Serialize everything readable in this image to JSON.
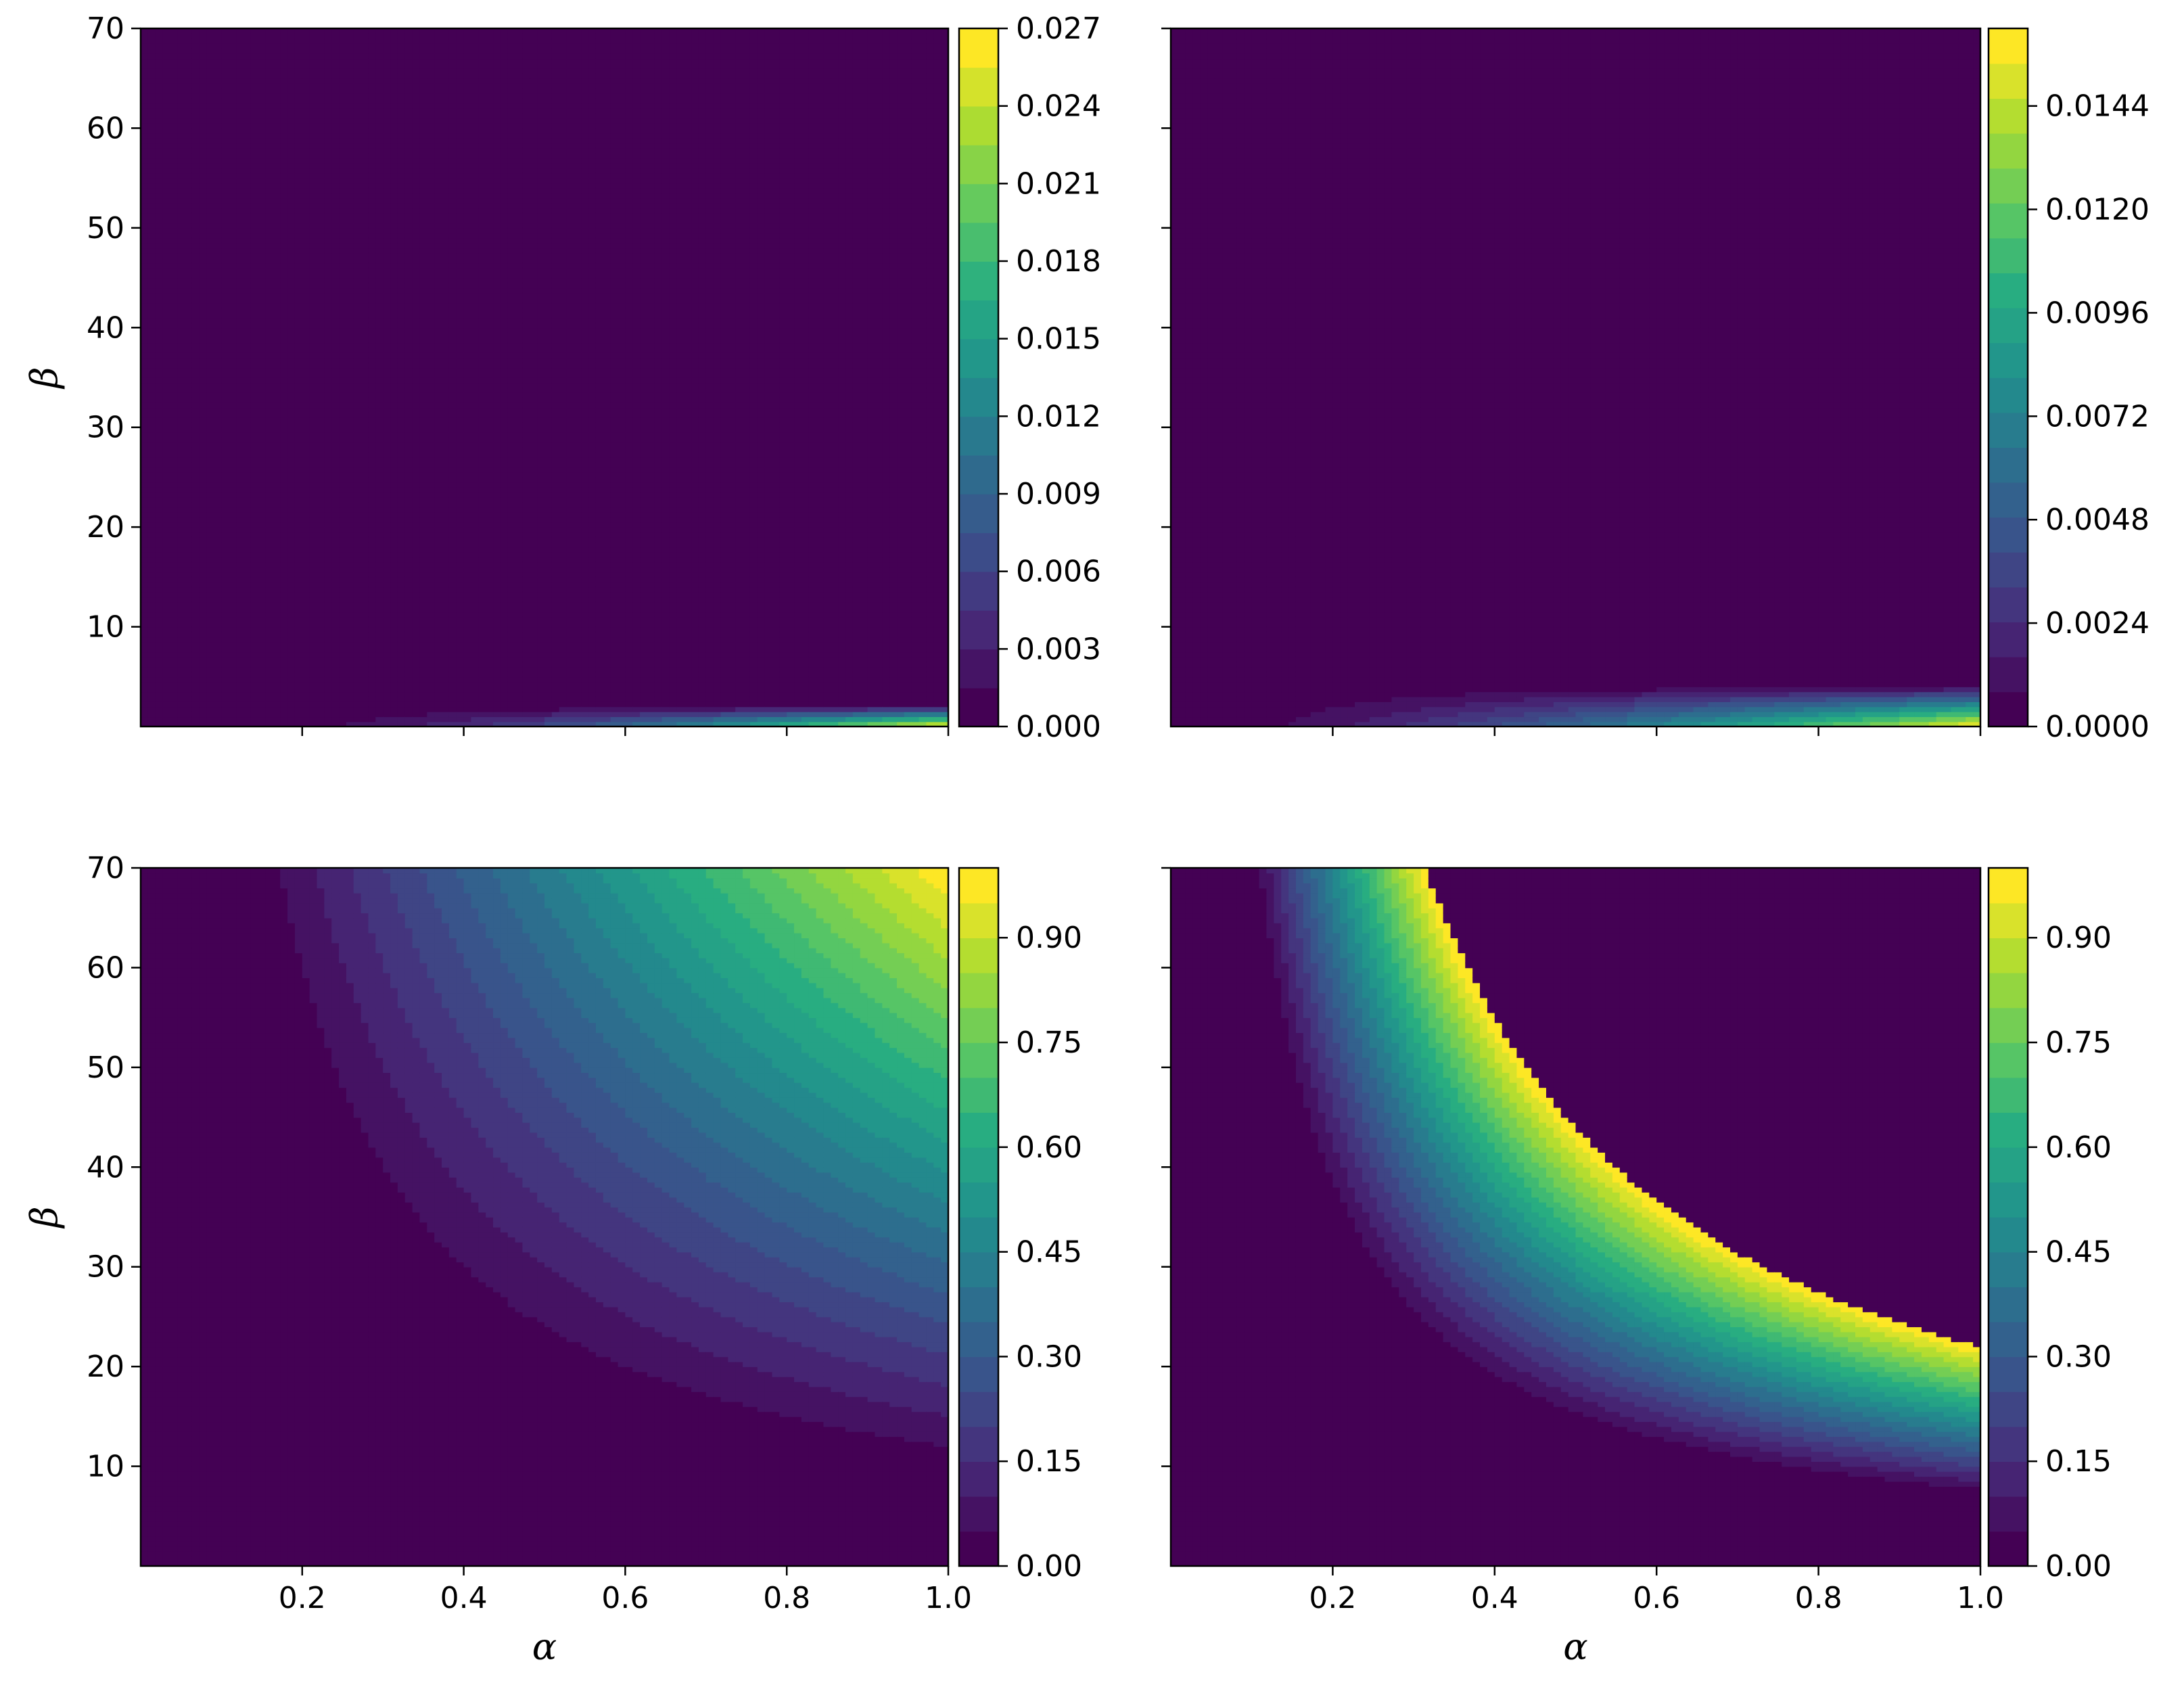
{
  "chart_data": [
    {
      "type": "heatmap",
      "position": "top-left",
      "xlabel": "",
      "ylabel": "β",
      "xlim": [
        0,
        1.0
      ],
      "ylim": [
        0,
        70
      ],
      "x_ticks": [
        0.2,
        0.4,
        0.6,
        0.8,
        1.0
      ],
      "x_tick_labels": [],
      "y_ticks": [
        10,
        20,
        30,
        40,
        50,
        60,
        70
      ],
      "y_tick_labels": [
        "10",
        "20",
        "30",
        "40",
        "50",
        "60",
        "70"
      ],
      "colormap": "viridis",
      "levels": 18,
      "colorbar": {
        "vmin": 0.0,
        "vmax": 0.027,
        "ticks": [
          0.0,
          0.003,
          0.006,
          0.009,
          0.012,
          0.015,
          0.018,
          0.021,
          0.024,
          0.027
        ],
        "tick_labels": [
          "0.000",
          "0.003",
          "0.006",
          "0.009",
          "0.012",
          "0.015",
          "0.018",
          "0.021",
          "0.024",
          "0.027"
        ]
      },
      "description_of_field": "near zero everywhere except a thin band at β below about 2, increasing with α to about 0.027 at α = 1"
    },
    {
      "type": "heatmap",
      "position": "top-right",
      "xlabel": "",
      "ylabel": "",
      "xlim": [
        0,
        1.0
      ],
      "ylim": [
        0,
        70
      ],
      "x_ticks": [
        0.2,
        0.4,
        0.6,
        0.8,
        1.0
      ],
      "x_tick_labels": [],
      "y_ticks": [
        10,
        20,
        30,
        40,
        50,
        60,
        70
      ],
      "y_tick_labels": [],
      "colormap": "viridis",
      "levels": 20,
      "colorbar": {
        "vmin": 0.0,
        "vmax": 0.0162,
        "ticks": [
          0.0,
          0.0024,
          0.0048,
          0.0072,
          0.0096,
          0.012,
          0.0144
        ],
        "tick_labels": [
          "0.0000",
          "0.0024",
          "0.0048",
          "0.0072",
          "0.0096",
          "0.0120",
          "0.0144"
        ]
      },
      "description_of_field": "near zero except a thin band at β below about 4, increasing with α to about 0.016 at α = 1"
    },
    {
      "type": "heatmap",
      "position": "bottom-left",
      "xlabel": "α",
      "ylabel": "β",
      "xlim": [
        0,
        1.0
      ],
      "ylim": [
        0,
        70
      ],
      "x_ticks": [
        0.2,
        0.4,
        0.6,
        0.8,
        1.0
      ],
      "x_tick_labels": [
        "0.2",
        "0.4",
        "0.6",
        "0.8",
        "1.0"
      ],
      "y_ticks": [
        10,
        20,
        30,
        40,
        50,
        60,
        70
      ],
      "y_tick_labels": [
        "10",
        "20",
        "30",
        "40",
        "50",
        "60",
        "70"
      ],
      "colormap": "viridis",
      "levels": 20,
      "colorbar": {
        "vmin": 0.0,
        "vmax": 1.0,
        "ticks": [
          0.0,
          0.15,
          0.3,
          0.45,
          0.6,
          0.75,
          0.9
        ],
        "tick_labels": [
          "0.00",
          "0.15",
          "0.30",
          "0.45",
          "0.60",
          "0.75",
          "0.90"
        ]
      },
      "description_of_field": "zero where α·β is below about 9, rising along hyperbolic contours to about 1.0 at α = 1, β = 70"
    },
    {
      "type": "heatmap",
      "position": "bottom-right",
      "xlabel": "α",
      "ylabel": "",
      "xlim": [
        0,
        1.0
      ],
      "ylim": [
        0,
        70
      ],
      "x_ticks": [
        0.2,
        0.4,
        0.6,
        0.8,
        1.0
      ],
      "x_tick_labels": [
        "0.2",
        "0.4",
        "0.6",
        "0.8",
        "1.0"
      ],
      "y_ticks": [
        10,
        20,
        30,
        40,
        50,
        60,
        70
      ],
      "y_tick_labels": [],
      "colormap": "viridis",
      "levels": 20,
      "colorbar": {
        "vmin": 0.0,
        "vmax": 1.0,
        "ticks": [
          0.0,
          0.15,
          0.3,
          0.45,
          0.6,
          0.75,
          0.9
        ],
        "tick_labels": [
          "0.00",
          "0.15",
          "0.30",
          "0.45",
          "0.60",
          "0.75",
          "0.90"
        ]
      },
      "description_of_field": "zero where α·β is below about 7, rising along hyperbolic contours to 1.0 near α·β ≈ 22, and zero again beyond that boundary"
    }
  ]
}
